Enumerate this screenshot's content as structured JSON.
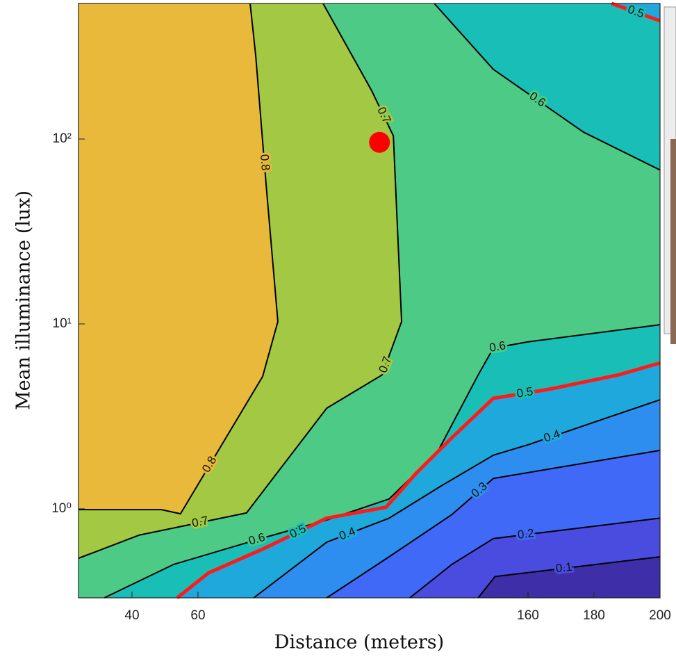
{
  "chart_data": {
    "type": "contour",
    "x_label": "Distance (meters)",
    "y_label": "Mean illuminance (lux)",
    "xlim": [
      23.8,
      200
    ],
    "ylim": [
      0.33,
      541
    ],
    "xticks": [
      40,
      60,
      160,
      180,
      200
    ],
    "yticks": [
      {
        "value": 1,
        "label": "10⁰"
      },
      {
        "value": 10,
        "label": "10¹"
      },
      {
        "value": 100,
        "label": "10²"
      }
    ],
    "y_scale": "log",
    "levels": [
      0.1,
      0.2,
      0.3,
      0.4,
      0.5,
      0.6,
      0.7,
      0.8
    ],
    "colors": [
      "#3e2fa9",
      "#4a4ce0",
      "#4169f7",
      "#2e8ef0",
      "#1fa8dc",
      "#19bfb7",
      "#4dcb86",
      "#a3c843",
      "#e8b93a"
    ],
    "line_color": "#000000",
    "highlight_level": 0.5,
    "highlight_color": "#ff1a1a",
    "contours": [
      {
        "level": 0.8,
        "x": [
          23.8,
          48.9,
          54.7,
          79.6,
          84.2,
          80.6,
          77.5,
          75.8
        ],
        "y": [
          0.99,
          0.99,
          0.94,
          5.2,
          10.3,
          58,
          282,
          541
        ]
      },
      {
        "level": 0.7,
        "x": [
          23.8,
          42.1,
          74.7,
          99.0,
          115.8,
          121.7,
          119.2,
          112.6,
          97.9
        ],
        "y": [
          0.54,
          0.72,
          0.95,
          3.5,
          5.3,
          10.3,
          104,
          183,
          541
        ]
      },
      {
        "level": 0.6,
        "x": [
          31.6,
          52.6,
          79,
          99,
          117.9,
          132.6,
          144.9,
          149.5,
          160,
          200
        ],
        "y": [
          0.33,
          0.5,
          0.69,
          0.87,
          1.13,
          2.03,
          5.3,
          7.4,
          8.0,
          9.9
        ]
      },
      {
        "level": 0.6,
        "x": [
          200,
          176.8,
          149.5,
          131.6
        ],
        "y": [
          68,
          109,
          238,
          541
        ]
      },
      {
        "level": 0.5,
        "x": [
          53.7,
          63.2,
          80,
          99,
          117,
          126.3,
          136.9,
          149.5,
          166.3,
          187.4,
          200
        ],
        "y": [
          0.33,
          0.45,
          0.61,
          0.89,
          1.02,
          1.57,
          2.42,
          3.96,
          4.43,
          5.3,
          6.15
        ]
      },
      {
        "level": 0.5,
        "x": [
          200,
          185.3
        ],
        "y": [
          436,
          541
        ]
      },
      {
        "level": 0.4,
        "x": [
          76.9,
          99,
          117.9,
          133.7,
          149.5,
          160,
          200
        ],
        "y": [
          0.33,
          0.66,
          0.89,
          1.33,
          1.95,
          2.22,
          3.89
        ]
      },
      {
        "level": 0.3,
        "x": [
          99,
          117.9,
          136.9,
          149.5,
          200
        ],
        "y": [
          0.33,
          0.55,
          0.93,
          1.46,
          2.07
        ]
      },
      {
        "level": 0.2,
        "x": [
          124.2,
          136.9,
          149.5,
          200
        ],
        "y": [
          0.33,
          0.5,
          0.69,
          0.89
        ]
      },
      {
        "level": 0.1,
        "x": [
          144.9,
          150,
          200
        ],
        "y": [
          0.33,
          0.43,
          0.55
        ]
      }
    ],
    "marker": {
      "x": 115,
      "y": 96,
      "color": "#ff0000"
    }
  }
}
